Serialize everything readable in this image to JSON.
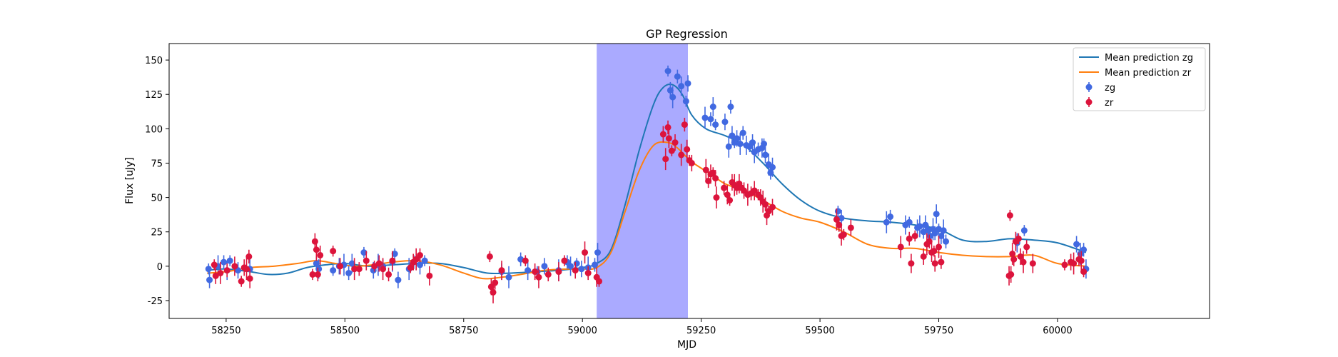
{
  "chart_data": {
    "type": "scatter",
    "title": "GP Regression",
    "xlabel": "MJD",
    "ylabel": "Flux [uJy]",
    "xlim": [
      58130,
      60320
    ],
    "ylim": [
      -38,
      162
    ],
    "xticks": [
      58250,
      58500,
      58750,
      59000,
      59250,
      59500,
      59750,
      60000
    ],
    "yticks": [
      -25,
      0,
      25,
      50,
      75,
      100,
      125,
      150
    ],
    "legend_position": "top-right",
    "shaded_region": {
      "x0": 59030,
      "x1": 59222,
      "color": "#aaaaff"
    },
    "lines": [
      {
        "name": "Mean prediction zg",
        "color": "#1f77b4",
        "x": [
          58210,
          58250,
          58300,
          58340,
          58380,
          58420,
          58460,
          58500,
          58550,
          58600,
          58650,
          58700,
          58750,
          58800,
          58850,
          58900,
          58950,
          59000,
          59030,
          59060,
          59090,
          59120,
          59150,
          59170,
          59190,
          59210,
          59230,
          59260,
          59300,
          59340,
          59380,
          59420,
          59460,
          59500,
          59550,
          59600,
          59650,
          59700,
          59750,
          59800,
          59850,
          59900,
          59950,
          60000,
          60060
        ],
        "y": [
          -3,
          -2,
          -4,
          -6,
          -5,
          -1,
          1,
          2,
          0,
          1,
          2,
          2,
          -1,
          -5,
          -5,
          -4,
          -3,
          -1,
          2,
          12,
          45,
          85,
          118,
          130,
          132,
          125,
          110,
          100,
          95,
          88,
          75,
          60,
          48,
          40,
          35,
          33,
          32,
          30,
          27,
          19,
          18,
          20,
          19,
          17,
          10
        ]
      },
      {
        "name": "Mean prediction zr",
        "color": "#ff7f0e",
        "x": [
          58210,
          58250,
          58300,
          58350,
          58400,
          58440,
          58480,
          58520,
          58560,
          58600,
          58650,
          58700,
          58750,
          58790,
          58830,
          58870,
          58920,
          58970,
          59000,
          59030,
          59060,
          59090,
          59120,
          59150,
          59180,
          59200,
          59230,
          59270,
          59300,
          59340,
          59380,
          59420,
          59460,
          59500,
          59550,
          59600,
          59650,
          59700,
          59750,
          59800,
          59850,
          59900,
          59950,
          60000,
          60060
        ],
        "y": [
          -5,
          -4,
          -1,
          0,
          2,
          4,
          2,
          0,
          1,
          3,
          4,
          1,
          -5,
          -9,
          -8,
          -6,
          -3,
          -2,
          -2,
          -1,
          10,
          40,
          70,
          88,
          90,
          86,
          76,
          67,
          60,
          55,
          48,
          40,
          35,
          32,
          25,
          16,
          13,
          13,
          10,
          8,
          7,
          7,
          8,
          2,
          0
        ]
      }
    ],
    "series": [
      {
        "name": "zg",
        "color": "#4169e1",
        "points": [
          [
            58213,
            -2
          ],
          [
            58215,
            -10
          ],
          [
            58233,
            0
          ],
          [
            58245,
            3
          ],
          [
            58252,
            -3
          ],
          [
            58258,
            4
          ],
          [
            58275,
            -3
          ],
          [
            58300,
            -2
          ],
          [
            58440,
            2
          ],
          [
            58445,
            -2
          ],
          [
            58475,
            -3
          ],
          [
            58488,
            0
          ],
          [
            58498,
            1
          ],
          [
            58508,
            -5
          ],
          [
            58515,
            2
          ],
          [
            58540,
            10
          ],
          [
            58560,
            -3
          ],
          [
            58570,
            1
          ],
          [
            58580,
            0
          ],
          [
            58600,
            3
          ],
          [
            58605,
            9
          ],
          [
            58612,
            -10
          ],
          [
            58635,
            -2
          ],
          [
            58645,
            3
          ],
          [
            58658,
            1
          ],
          [
            58668,
            4
          ],
          [
            58830,
            -4
          ],
          [
            58845,
            -8
          ],
          [
            58870,
            5
          ],
          [
            58885,
            -3
          ],
          [
            58905,
            -4
          ],
          [
            58920,
            0
          ],
          [
            58950,
            -3
          ],
          [
            58968,
            3
          ],
          [
            58975,
            0
          ],
          [
            58988,
            2
          ],
          [
            58998,
            -2
          ],
          [
            59012,
            -1
          ],
          [
            59026,
            1
          ],
          [
            59032,
            10
          ],
          [
            59180,
            142
          ],
          [
            59185,
            128
          ],
          [
            59190,
            123
          ],
          [
            59200,
            138
          ],
          [
            59208,
            131
          ],
          [
            59218,
            120
          ],
          [
            59222,
            133
          ],
          [
            59258,
            108
          ],
          [
            59270,
            107
          ],
          [
            59275,
            116
          ],
          [
            59280,
            103
          ],
          [
            59300,
            105
          ],
          [
            59308,
            87
          ],
          [
            59312,
            116
          ],
          [
            59315,
            95
          ],
          [
            59320,
            90
          ],
          [
            59325,
            93
          ],
          [
            59332,
            89
          ],
          [
            59338,
            97
          ],
          [
            59345,
            88
          ],
          [
            59352,
            87
          ],
          [
            59358,
            90
          ],
          [
            59362,
            83
          ],
          [
            59370,
            85
          ],
          [
            59378,
            86
          ],
          [
            59382,
            89
          ],
          [
            59385,
            81
          ],
          [
            59392,
            74
          ],
          [
            59396,
            68
          ],
          [
            59400,
            72
          ],
          [
            59538,
            40
          ],
          [
            59545,
            35
          ],
          [
            59640,
            32
          ],
          [
            59648,
            36
          ],
          [
            59680,
            30
          ],
          [
            59688,
            32
          ],
          [
            59705,
            28
          ],
          [
            59710,
            29
          ],
          [
            59718,
            25
          ],
          [
            59722,
            30
          ],
          [
            59728,
            26
          ],
          [
            59732,
            22
          ],
          [
            59738,
            27
          ],
          [
            59742,
            24
          ],
          [
            59745,
            38
          ],
          [
            59750,
            27
          ],
          [
            59755,
            22
          ],
          [
            59760,
            26
          ],
          [
            59765,
            18
          ],
          [
            59915,
            17
          ],
          [
            59930,
            26
          ],
          [
            60040,
            16
          ],
          [
            60048,
            9
          ],
          [
            60055,
            12
          ],
          [
            60060,
            -2
          ]
        ]
      },
      {
        "name": "zr",
        "color": "#dc143c",
        "points": [
          [
            58225,
            1
          ],
          [
            58228,
            -7
          ],
          [
            58238,
            -5
          ],
          [
            58252,
            -3
          ],
          [
            58268,
            0
          ],
          [
            58282,
            -11
          ],
          [
            58288,
            -1
          ],
          [
            58293,
            -2
          ],
          [
            58298,
            7
          ],
          [
            58300,
            -9
          ],
          [
            58432,
            -6
          ],
          [
            58437,
            18
          ],
          [
            58440,
            12
          ],
          [
            58443,
            -6
          ],
          [
            58448,
            8
          ],
          [
            58475,
            11
          ],
          [
            58490,
            0
          ],
          [
            58520,
            -2
          ],
          [
            58530,
            -2
          ],
          [
            58545,
            4
          ],
          [
            58562,
            0
          ],
          [
            58572,
            2
          ],
          [
            58580,
            -2
          ],
          [
            58592,
            -6
          ],
          [
            58600,
            4
          ],
          [
            58638,
            -1
          ],
          [
            58644,
            3
          ],
          [
            58650,
            5
          ],
          [
            58658,
            8
          ],
          [
            58678,
            -7
          ],
          [
            58805,
            7
          ],
          [
            58808,
            -15
          ],
          [
            58812,
            -19
          ],
          [
            58816,
            -12
          ],
          [
            58830,
            -3
          ],
          [
            58880,
            4
          ],
          [
            58900,
            -4
          ],
          [
            58908,
            -8
          ],
          [
            58928,
            -6
          ],
          [
            58950,
            -4
          ],
          [
            58962,
            4
          ],
          [
            58985,
            -3
          ],
          [
            59005,
            10
          ],
          [
            59012,
            -5
          ],
          [
            59030,
            -8
          ],
          [
            59035,
            -11
          ],
          [
            59170,
            96
          ],
          [
            59175,
            78
          ],
          [
            59180,
            101
          ],
          [
            59182,
            93
          ],
          [
            59188,
            84
          ],
          [
            59195,
            90
          ],
          [
            59208,
            81
          ],
          [
            59215,
            103
          ],
          [
            59220,
            85
          ],
          [
            59225,
            77
          ],
          [
            59230,
            75
          ],
          [
            59260,
            70
          ],
          [
            59265,
            62
          ],
          [
            59270,
            67
          ],
          [
            59275,
            68
          ],
          [
            59280,
            64
          ],
          [
            59282,
            50
          ],
          [
            59298,
            57
          ],
          [
            59305,
            52
          ],
          [
            59310,
            48
          ],
          [
            59315,
            61
          ],
          [
            59320,
            59
          ],
          [
            59325,
            57
          ],
          [
            59330,
            60
          ],
          [
            59335,
            57
          ],
          [
            59340,
            55
          ],
          [
            59348,
            52
          ],
          [
            59355,
            53
          ],
          [
            59362,
            55
          ],
          [
            59370,
            52
          ],
          [
            59375,
            50
          ],
          [
            59380,
            47
          ],
          [
            59385,
            45
          ],
          [
            59388,
            37
          ],
          [
            59392,
            40
          ],
          [
            59400,
            43
          ],
          [
            59535,
            34
          ],
          [
            59540,
            30
          ],
          [
            59545,
            22
          ],
          [
            59550,
            23
          ],
          [
            59565,
            28
          ],
          [
            59670,
            14
          ],
          [
            59688,
            20
          ],
          [
            59692,
            2
          ],
          [
            59700,
            22
          ],
          [
            59718,
            7
          ],
          [
            59725,
            16
          ],
          [
            59730,
            18
          ],
          [
            59735,
            10
          ],
          [
            59740,
            11
          ],
          [
            59742,
            2
          ],
          [
            59750,
            14
          ],
          [
            59755,
            3
          ],
          [
            59898,
            -7
          ],
          [
            59900,
            37
          ],
          [
            59902,
            -6
          ],
          [
            59905,
            9
          ],
          [
            59908,
            5
          ],
          [
            59912,
            18
          ],
          [
            59918,
            20
          ],
          [
            59922,
            7
          ],
          [
            59928,
            3
          ],
          [
            59935,
            14
          ],
          [
            59948,
            2
          ],
          [
            60015,
            1
          ],
          [
            60028,
            3
          ],
          [
            60034,
            2
          ],
          [
            60045,
            5
          ],
          [
            60050,
            4
          ],
          [
            60055,
            -4
          ]
        ]
      }
    ]
  }
}
